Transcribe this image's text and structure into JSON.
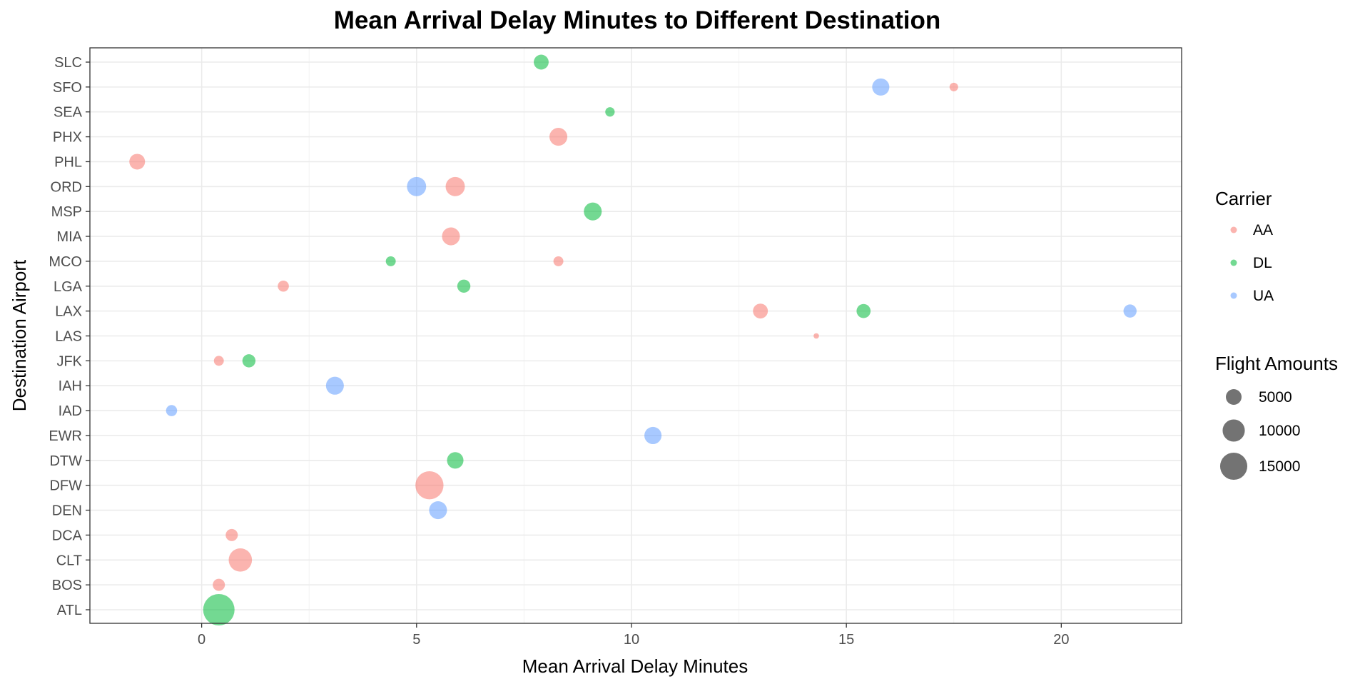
{
  "chart_data": {
    "type": "scatter",
    "title": "Mean Arrival Delay Minutes to Different Destination",
    "xlabel": "Mean Arrival Delay Minutes",
    "ylabel": "Destination Airport",
    "xlim": [
      -2.6,
      22.8
    ],
    "x_ticks": [
      0,
      5,
      10,
      15,
      20
    ],
    "categories": [
      "ATL",
      "BOS",
      "CLT",
      "DCA",
      "DEN",
      "DFW",
      "DTW",
      "EWR",
      "IAD",
      "IAH",
      "JFK",
      "LAS",
      "LAX",
      "LGA",
      "MCO",
      "MIA",
      "MSP",
      "ORD",
      "PHL",
      "PHX",
      "SEA",
      "SFO",
      "SLC"
    ],
    "grid": true,
    "legend_position": "right",
    "series": [
      {
        "name": "AA",
        "color": "#F8766D",
        "points": [
          {
            "airport": "BOS",
            "x": 0.4,
            "flights": 3000
          },
          {
            "airport": "CLT",
            "x": 0.9,
            "flights": 11000
          },
          {
            "airport": "DCA",
            "x": 0.7,
            "flights": 3000
          },
          {
            "airport": "DFW",
            "x": 5.3,
            "flights": 16000
          },
          {
            "airport": "JFK",
            "x": 0.4,
            "flights": 2000
          },
          {
            "airport": "LAS",
            "x": 14.3,
            "flights": 600
          },
          {
            "airport": "LAX",
            "x": 13.0,
            "flights": 4500
          },
          {
            "airport": "LGA",
            "x": 1.9,
            "flights": 2500
          },
          {
            "airport": "MCO",
            "x": 8.3,
            "flights": 2000
          },
          {
            "airport": "MIA",
            "x": 5.8,
            "flights": 6500
          },
          {
            "airport": "ORD",
            "x": 5.9,
            "flights": 7500
          },
          {
            "airport": "PHL",
            "x": -1.5,
            "flights": 5000
          },
          {
            "airport": "PHX",
            "x": 8.3,
            "flights": 6500
          },
          {
            "airport": "SFO",
            "x": 17.5,
            "flights": 1500
          }
        ]
      },
      {
        "name": "DL",
        "color": "#00BA38",
        "points": [
          {
            "airport": "ATL",
            "x": 0.4,
            "flights": 20000
          },
          {
            "airport": "DTW",
            "x": 5.9,
            "flights": 5500
          },
          {
            "airport": "JFK",
            "x": 1.1,
            "flights": 3500
          },
          {
            "airport": "LAX",
            "x": 15.4,
            "flights": 4000
          },
          {
            "airport": "LGA",
            "x": 6.1,
            "flights": 3500
          },
          {
            "airport": "MCO",
            "x": 4.4,
            "flights": 2000
          },
          {
            "airport": "MSP",
            "x": 9.1,
            "flights": 6500
          },
          {
            "airport": "SEA",
            "x": 9.5,
            "flights": 1800
          },
          {
            "airport": "SLC",
            "x": 7.9,
            "flights": 4500
          }
        ]
      },
      {
        "name": "UA",
        "color": "#619CFF",
        "points": [
          {
            "airport": "DEN",
            "x": 5.5,
            "flights": 6500
          },
          {
            "airport": "EWR",
            "x": 10.5,
            "flights": 6000
          },
          {
            "airport": "IAD",
            "x": -0.7,
            "flights": 2500
          },
          {
            "airport": "IAH",
            "x": 3.1,
            "flights": 6500
          },
          {
            "airport": "LAX",
            "x": 21.6,
            "flights": 3500
          },
          {
            "airport": "ORD",
            "x": 5.0,
            "flights": 7500
          },
          {
            "airport": "SFO",
            "x": 15.8,
            "flights": 6000
          }
        ]
      }
    ],
    "legend": {
      "color_title": "Carrier",
      "color_items": [
        "AA",
        "DL",
        "UA"
      ],
      "size_title": "Flight Amounts",
      "size_items": [
        {
          "label": "5000",
          "value": 5000
        },
        {
          "label": "10000",
          "value": 10000
        },
        {
          "label": "15000",
          "value": 15000
        }
      ]
    },
    "point_alpha": 0.55,
    "size_legend_color": "#000000"
  }
}
